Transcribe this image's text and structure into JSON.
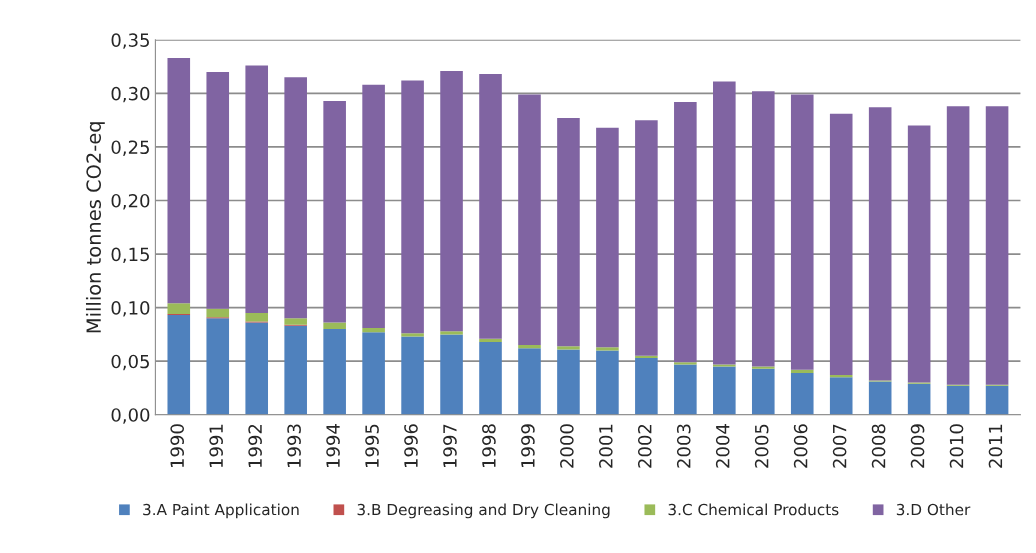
{
  "chart_data": {
    "type": "bar",
    "stacked": true,
    "ylabel": "Million tonnes CO2-eq",
    "categories": [
      "1990",
      "1991",
      "1992",
      "1993",
      "1994",
      "1995",
      "1996",
      "1997",
      "1998",
      "1999",
      "2000",
      "2001",
      "2002",
      "2003",
      "2004",
      "2005",
      "2006",
      "2007",
      "2008",
      "2009",
      "2010",
      "2011"
    ],
    "series": [
      {
        "name": "3.A Paint Application",
        "color": "#4f81bd",
        "values": [
          0.093,
          0.09,
          0.086,
          0.083,
          0.08,
          0.077,
          0.073,
          0.075,
          0.068,
          0.062,
          0.061,
          0.06,
          0.053,
          0.047,
          0.045,
          0.043,
          0.039,
          0.035,
          0.031,
          0.029,
          0.027,
          0.027
        ]
      },
      {
        "name": "3.B Degreasing and Dry Cleaning",
        "color": "#c0504d",
        "values": [
          0.001,
          0.001,
          0.001,
          0.001,
          0,
          0,
          0,
          0,
          0,
          0,
          0,
          0,
          0,
          0,
          0,
          0,
          0,
          0,
          0,
          0,
          0,
          0
        ]
      },
      {
        "name": "3.C Chemical Products",
        "color": "#9bbb59",
        "values": [
          0.01,
          0.008,
          0.008,
          0.006,
          0.006,
          0.004,
          0.003,
          0.003,
          0.003,
          0.003,
          0.003,
          0.003,
          0.002,
          0.002,
          0.002,
          0.002,
          0.003,
          0.002,
          0.001,
          0.001,
          0.001,
          0.001
        ]
      },
      {
        "name": "3.D Other",
        "color": "#8064a2",
        "values": [
          0.229,
          0.221,
          0.231,
          0.225,
          0.207,
          0.227,
          0.236,
          0.243,
          0.247,
          0.234,
          0.213,
          0.205,
          0.22,
          0.243,
          0.264,
          0.257,
          0.257,
          0.244,
          0.255,
          0.24,
          0.26,
          0.26
        ]
      }
    ],
    "ylim": [
      0,
      0.35
    ],
    "yticks": [
      {
        "value": 0,
        "label": "0,00"
      },
      {
        "value": 0.05,
        "label": "0,05"
      },
      {
        "value": 0.1,
        "label": "0,10"
      },
      {
        "value": 0.15,
        "label": "0,15"
      },
      {
        "value": 0.2,
        "label": "0,20"
      },
      {
        "value": 0.25,
        "label": "0,25"
      },
      {
        "value": 0.3,
        "label": "0,30"
      },
      {
        "value": 0.35,
        "label": "0,35"
      }
    ],
    "grid": "y",
    "legend": "bottom"
  }
}
